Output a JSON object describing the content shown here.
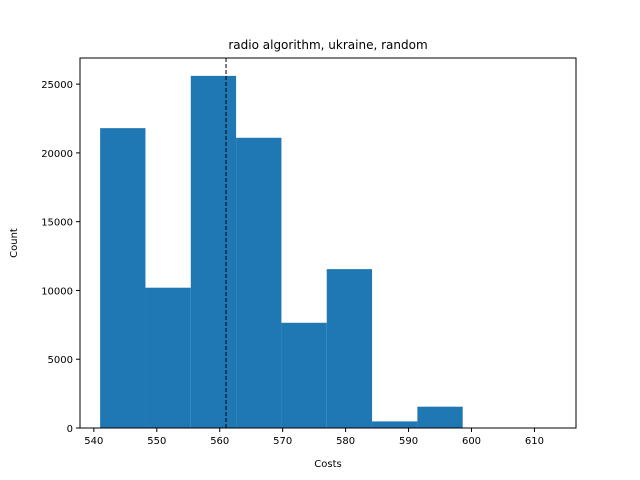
{
  "chart_data": {
    "type": "bar",
    "title": "radio algorithm, ukraine, random",
    "xlabel": "Costs",
    "ylabel": "Count",
    "xlim": [
      537.8,
      616.6
    ],
    "ylim": [
      0,
      26900
    ],
    "xticks": [
      540,
      550,
      560,
      570,
      580,
      590,
      600,
      610
    ],
    "yticks": [
      0,
      5000,
      10000,
      15000,
      20000,
      25000
    ],
    "bins": [
      {
        "start": 541.0,
        "end": 548.2,
        "count": 21800
      },
      {
        "start": 548.2,
        "end": 555.4,
        "count": 10200
      },
      {
        "start": 555.4,
        "end": 562.6,
        "count": 25600
      },
      {
        "start": 562.6,
        "end": 569.8,
        "count": 21100
      },
      {
        "start": 569.8,
        "end": 577.0,
        "count": 7650
      },
      {
        "start": 577.0,
        "end": 584.2,
        "count": 11550
      },
      {
        "start": 584.2,
        "end": 591.4,
        "count": 480
      },
      {
        "start": 591.4,
        "end": 598.6,
        "count": 1550
      },
      {
        "start": 598.6,
        "end": 605.8,
        "count": 0
      },
      {
        "start": 605.8,
        "end": 613.0,
        "count": 0
      }
    ],
    "reference_line": {
      "x": 561.0,
      "style": "dashed",
      "color": "#000000"
    },
    "bar_color": "#1f77b4",
    "grid": false,
    "legend": "none"
  }
}
